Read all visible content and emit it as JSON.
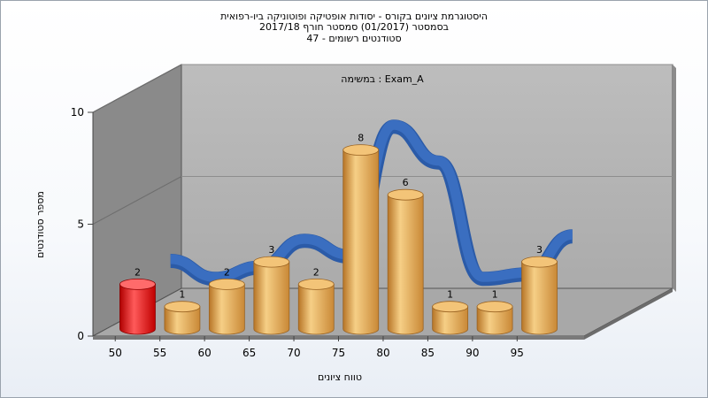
{
  "chart_data": {
    "type": "bar",
    "title_lines": [
      "היסטוגרמת ציונים בקורס - יסודות אופטיקה ופוטוניקה ביו-רפואית",
      "בסמסטר (01/2017) סמסטר חורף 2017/18",
      "סטודנטים רשומים - 47"
    ],
    "annotation": "במשימה : Exam_A",
    "xlabel": "טווח ציונים",
    "ylabel": "מספר סטודנטים",
    "x_ticks": [
      "50",
      "55",
      "60",
      "65",
      "70",
      "75",
      "80",
      "85",
      "90",
      "95"
    ],
    "y_ticks": [
      "0",
      "5",
      "10"
    ],
    "ylim": [
      0,
      10
    ],
    "bars": [
      {
        "x": 50,
        "value": 2,
        "label": "2",
        "highlight": true
      },
      {
        "x": 55,
        "value": 1,
        "label": "1"
      },
      {
        "x": 60,
        "value": 2,
        "label": "2"
      },
      {
        "x": 65,
        "value": 3,
        "label": "3"
      },
      {
        "x": 70,
        "value": 2,
        "label": "2"
      },
      {
        "x": 75,
        "value": 8,
        "label": "8"
      },
      {
        "x": 80,
        "value": 6,
        "label": "6"
      },
      {
        "x": 85,
        "value": 1,
        "label": "1"
      },
      {
        "x": 90,
        "value": 1,
        "label": "1"
      },
      {
        "x": 95,
        "value": 3,
        "label": "3"
      }
    ],
    "curve": [
      {
        "x": 55,
        "y": 3.2
      },
      {
        "x": 60,
        "y": 2.4
      },
      {
        "x": 65,
        "y": 2.9
      },
      {
        "x": 70,
        "y": 4.1
      },
      {
        "x": 75,
        "y": 3.4
      },
      {
        "x": 80,
        "y": 9.2
      },
      {
        "x": 85,
        "y": 7.6
      },
      {
        "x": 90,
        "y": 2.4
      },
      {
        "x": 95,
        "y": 2.6
      },
      {
        "x": 100,
        "y": 4.3
      }
    ],
    "colors": {
      "bar": "#e8a84c",
      "bar_highlight": "#e01010",
      "curve": "#3a6ec0",
      "back_wall": "#b4b4b4",
      "side_wall": "#8a8a8a",
      "floor": "#a8a8a8"
    }
  }
}
